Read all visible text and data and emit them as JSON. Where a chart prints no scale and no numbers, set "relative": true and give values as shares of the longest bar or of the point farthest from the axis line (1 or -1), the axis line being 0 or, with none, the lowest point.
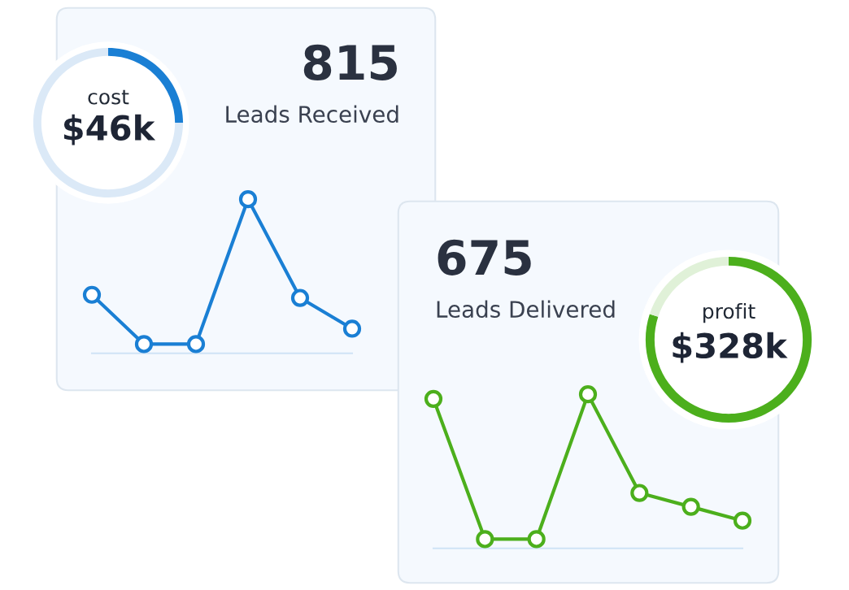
{
  "chart_data": [
    {
      "type": "line",
      "relative": true,
      "title": "815",
      "subtitle": "Leads Received",
      "categories": [
        null,
        null,
        null,
        null,
        null,
        null
      ],
      "series": [
        {
          "color": "#1a7fd4",
          "values": [
            0.38,
            0.06,
            0.06,
            1,
            0.36,
            0.16
          ]
        }
      ],
      "marker": "circle"
    },
    {
      "type": "donut",
      "title": "cost",
      "annotations": [
        "$46k"
      ],
      "categories": [
        null,
        null
      ],
      "values": [
        25,
        75
      ],
      "colors": [
        "#1a7fd4",
        "#dbe9f7"
      ]
    },
    {
      "type": "line",
      "relative": true,
      "title": "675",
      "subtitle": "Leads Delivered",
      "categories": [
        null,
        null,
        null,
        null,
        null,
        null,
        null
      ],
      "series": [
        {
          "color": "#4caf1c",
          "values": [
            0.97,
            0.06,
            0.06,
            1,
            0.36,
            0.27,
            0.18
          ]
        }
      ],
      "marker": "circle"
    },
    {
      "type": "donut",
      "title": "profit",
      "annotations": [
        "$328k"
      ],
      "categories": [
        null,
        null
      ],
      "values": [
        80,
        20
      ],
      "colors": [
        "#4caf1c",
        "#e0f1d8"
      ]
    }
  ]
}
